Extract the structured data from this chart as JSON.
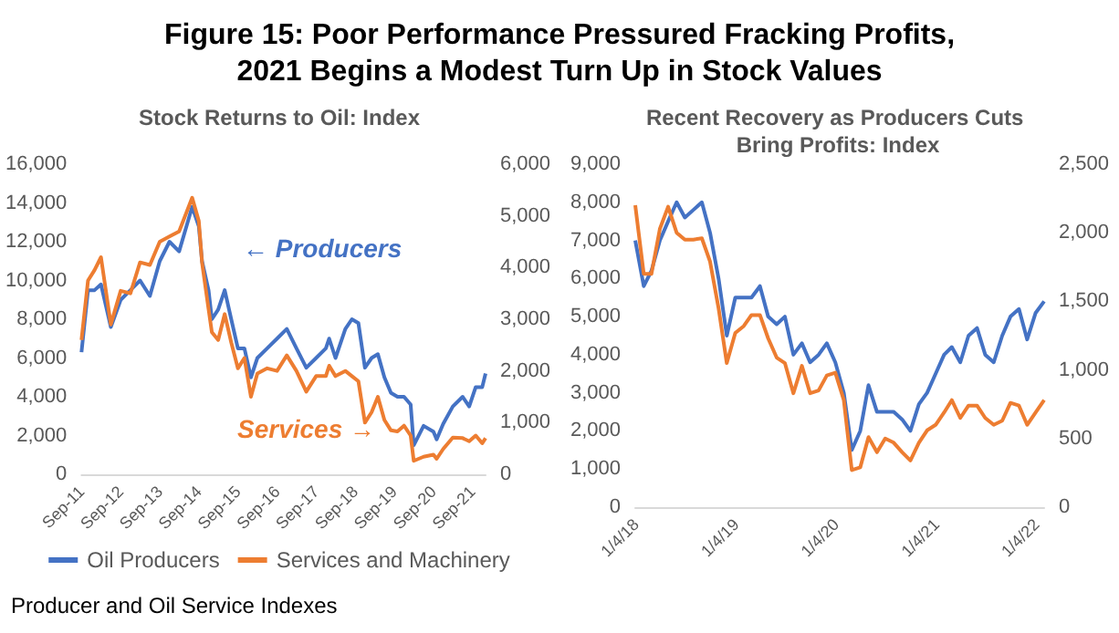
{
  "chart_data": [
    {
      "type": "line",
      "title": "Figure 15: Poor Performance Pressured Fracking Profits, 2021 Begins a Modest Turn Up in Stock Values",
      "subtitle": "Stock Returns to Oil: Index",
      "x": [
        "2011-09",
        "2011-11",
        "2012-01",
        "2012-03",
        "2012-06",
        "2012-09",
        "2012-12",
        "2013-03",
        "2013-06",
        "2013-09",
        "2013-12",
        "2014-03",
        "2014-07",
        "2014-09",
        "2014-10",
        "2014-12",
        "2015-01",
        "2015-03",
        "2015-05",
        "2015-07",
        "2015-09",
        "2015-11",
        "2016-01",
        "2016-03",
        "2016-06",
        "2016-09",
        "2016-12",
        "2017-03",
        "2017-06",
        "2017-09",
        "2017-12",
        "2018-01",
        "2018-03",
        "2018-06",
        "2018-08",
        "2018-10",
        "2018-12",
        "2019-02",
        "2019-04",
        "2019-06",
        "2019-08",
        "2019-10",
        "2019-12",
        "2020-02",
        "2020-03",
        "2020-06",
        "2020-09",
        "2020-10",
        "2020-12",
        "2021-03",
        "2021-06",
        "2021-08",
        "2021-10",
        "2021-12",
        "2022-01"
      ],
      "series": [
        {
          "name": "Oil Producers",
          "color": "#4472c4",
          "values": [
            6300,
            9500,
            9500,
            9800,
            7600,
            9000,
            9500,
            10000,
            9200,
            11000,
            12000,
            11500,
            13800,
            12800,
            11000,
            9500,
            8000,
            8500,
            9500,
            8000,
            6500,
            6500,
            5000,
            6000,
            6500,
            7000,
            7500,
            6500,
            5500,
            6000,
            6500,
            7000,
            6000,
            7500,
            8000,
            7800,
            5500,
            6000,
            6200,
            5000,
            4200,
            4000,
            4000,
            3600,
            1500,
            2500,
            2200,
            1800,
            2600,
            3500,
            4000,
            3500,
            4500,
            4500,
            5200
          ]
        },
        {
          "name": "Services and Machinery",
          "color": "#ed7d31",
          "axis": "y2",
          "values": [
            2600,
            3750,
            3950,
            4200,
            2900,
            3550,
            3500,
            4100,
            4050,
            4500,
            4600,
            4700,
            5350,
            4900,
            4100,
            3200,
            2750,
            2600,
            3100,
            2550,
            2050,
            2250,
            1500,
            1950,
            2050,
            2000,
            2300,
            2000,
            1600,
            1900,
            1900,
            2100,
            1900,
            2000,
            1900,
            1800,
            1000,
            1200,
            1500,
            1050,
            850,
            830,
            940,
            750,
            260,
            340,
            380,
            300,
            490,
            710,
            700,
            640,
            750,
            600,
            700
          ]
        }
      ],
      "xlim": [
        "2011-09",
        "2022-01"
      ],
      "xticks": [
        {
          "value": "2011-09",
          "label": "Sep-11"
        },
        {
          "value": "2012-09",
          "label": "Sep-12"
        },
        {
          "value": "2013-09",
          "label": "Sep-13"
        },
        {
          "value": "2014-09",
          "label": "Sep-14"
        },
        {
          "value": "2015-09",
          "label": "Sep-15"
        },
        {
          "value": "2016-09",
          "label": "Sep-16"
        },
        {
          "value": "2017-09",
          "label": "Sep-17"
        },
        {
          "value": "2018-09",
          "label": "Sep-18"
        },
        {
          "value": "2019-09",
          "label": "Sep-19"
        },
        {
          "value": "2020-09",
          "label": "Sep-20"
        },
        {
          "value": "2021-09",
          "label": "Sep-21"
        }
      ],
      "ylim": [
        0,
        16000
      ],
      "yticks": [
        {
          "value": 0,
          "label": "0"
        },
        {
          "value": 2000,
          "label": "2,000"
        },
        {
          "value": 4000,
          "label": "4,000"
        },
        {
          "value": 6000,
          "label": "6,000"
        },
        {
          "value": 8000,
          "label": "8,000"
        },
        {
          "value": 10000,
          "label": "10,000"
        },
        {
          "value": 12000,
          "label": "12,000"
        },
        {
          "value": 14000,
          "label": "14,000"
        },
        {
          "value": 16000,
          "label": "16,000"
        }
      ],
      "y2lim": [
        0,
        6000
      ],
      "y2ticks": [
        {
          "value": 0,
          "label": "0"
        },
        {
          "value": 1000,
          "label": "1,000"
        },
        {
          "value": 2000,
          "label": "2,000"
        },
        {
          "value": 3000,
          "label": "3,000"
        },
        {
          "value": 4000,
          "label": "4,000"
        },
        {
          "value": 5000,
          "label": "5,000"
        },
        {
          "value": 6000,
          "label": "6,000"
        }
      ],
      "annotations": [
        "← Producers",
        "Services →",
        "Producer and Oil Service Indexes"
      ],
      "legend": "bottom",
      "grid": false
    },
    {
      "type": "line",
      "title": "Recent Recovery as Producers Cuts Bring Profits: Index",
      "x": [
        "2018-01",
        "2018-02",
        "2018-03",
        "2018-04",
        "2018-05",
        "2018-06",
        "2018-07",
        "2018-08",
        "2018-09",
        "2018-10",
        "2018-11",
        "2018-12",
        "2019-01",
        "2019-02",
        "2019-03",
        "2019-04",
        "2019-05",
        "2019-06",
        "2019-07",
        "2019-08",
        "2019-09",
        "2019-10",
        "2019-11",
        "2019-12",
        "2020-01",
        "2020-02",
        "2020-03",
        "2020-04",
        "2020-05",
        "2020-06",
        "2020-07",
        "2020-08",
        "2020-09",
        "2020-10",
        "2020-11",
        "2020-12",
        "2021-01",
        "2021-02",
        "2021-03",
        "2021-04",
        "2021-05",
        "2021-06",
        "2021-07",
        "2021-08",
        "2021-09",
        "2021-10",
        "2021-11",
        "2021-12",
        "2022-01",
        "2022-02"
      ],
      "series": [
        {
          "color": "#4472c4",
          "values": [
            7000,
            5800,
            6200,
            7000,
            7500,
            8000,
            7600,
            7800,
            8000,
            7200,
            6000,
            4500,
            5500,
            5500,
            5500,
            5800,
            5000,
            4800,
            5000,
            4000,
            4300,
            3800,
            4000,
            4300,
            3800,
            3000,
            1500,
            2000,
            3200,
            2500,
            2500,
            2500,
            2300,
            2000,
            2700,
            3000,
            3500,
            4000,
            4200,
            3800,
            4500,
            4700,
            4000,
            3800,
            4500,
            5000,
            5200,
            4400,
            5100,
            5400
          ]
        },
        {
          "color": "#ed7d31",
          "axis": "y2",
          "values": [
            2200,
            1700,
            1700,
            2030,
            2190,
            2000,
            1950,
            1950,
            1960,
            1790,
            1450,
            1050,
            1270,
            1320,
            1400,
            1400,
            1230,
            1090,
            1050,
            830,
            1030,
            830,
            850,
            960,
            980,
            780,
            270,
            290,
            510,
            400,
            500,
            470,
            400,
            340,
            470,
            560,
            600,
            690,
            780,
            650,
            740,
            740,
            650,
            600,
            630,
            760,
            740,
            600,
            690,
            780
          ]
        }
      ],
      "xlim": [
        "2018-01",
        "2022-02"
      ],
      "xticks": [
        {
          "value": "2018-01-04",
          "label": "1/4/18"
        },
        {
          "value": "2019-01-04",
          "label": "1/4/19"
        },
        {
          "value": "2020-01-04",
          "label": "1/4/20"
        },
        {
          "value": "2021-01-04",
          "label": "1/4/21"
        },
        {
          "value": "2022-01-04",
          "label": "1/4/22"
        }
      ],
      "ylim": [
        0,
        9000
      ],
      "yticks": [
        {
          "value": 0,
          "label": "0"
        },
        {
          "value": 1000,
          "label": "1,000"
        },
        {
          "value": 2000,
          "label": "2,000"
        },
        {
          "value": 3000,
          "label": "3,000"
        },
        {
          "value": 4000,
          "label": "4,000"
        },
        {
          "value": 5000,
          "label": "5,000"
        },
        {
          "value": 6000,
          "label": "6,000"
        },
        {
          "value": 7000,
          "label": "7,000"
        },
        {
          "value": 8000,
          "label": "8,000"
        },
        {
          "value": 9000,
          "label": "9,000"
        }
      ],
      "y2lim": [
        0,
        2500
      ],
      "y2ticks": [
        {
          "value": 0,
          "label": "0"
        },
        500,
        {
          "value": 1000,
          "label": "1,000"
        },
        {
          "value": 1500,
          "label": "1,500"
        },
        {
          "value": 2000,
          "label": "2,000"
        },
        {
          "value": 2500,
          "label": "2,500"
        }
      ],
      "grid": false
    }
  ]
}
